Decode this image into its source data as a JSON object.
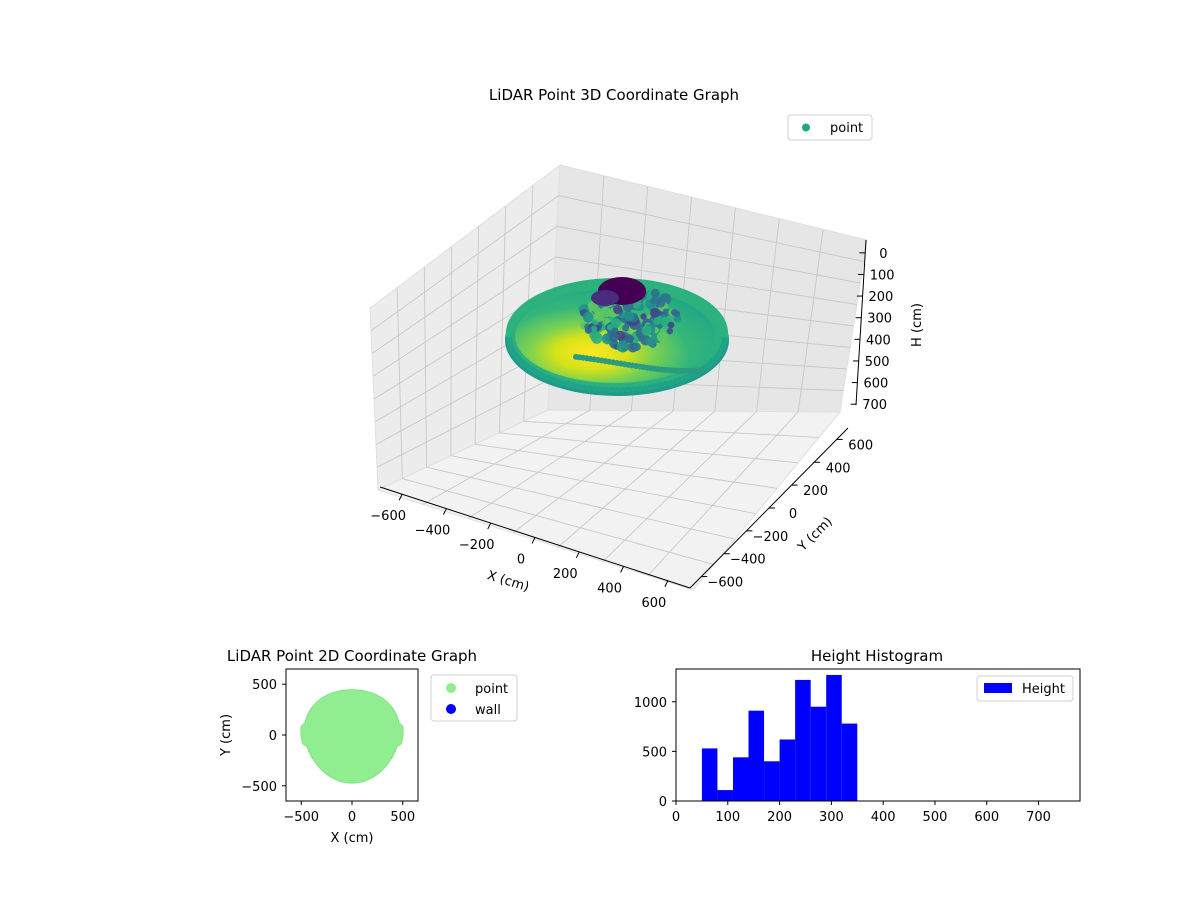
{
  "chart_data": [
    {
      "type": "scatter",
      "projection": "3d",
      "title": "LiDAR Point 3D Coordinate Graph",
      "xlabel": "X (cm)",
      "ylabel": "Y (cm)",
      "zlabel": "H (cm)",
      "xticks": [
        "−600",
        "−400",
        "−200",
        "0",
        "200",
        "400",
        "600"
      ],
      "yticks": [
        "600",
        "400",
        "200",
        "0",
        "−200",
        "−400",
        "−600"
      ],
      "zticks": [
        "0",
        "100",
        "200",
        "300",
        "400",
        "500",
        "600",
        "700"
      ],
      "xlim": [
        -650,
        650
      ],
      "ylim": [
        -650,
        650
      ],
      "zlim": [
        750,
        0
      ],
      "z_inverted": true,
      "grid": true,
      "colormap": "viridis",
      "legend": {
        "placement": "top-right",
        "entries": [
          {
            "label": "point",
            "color": "#21a685"
          }
        ]
      },
      "series": [
        {
          "name": "point",
          "description_values": {
            "outer_ring_radius_cm": 450,
            "floor_height_cm": 350,
            "top_cluster_height_cm": 60
          }
        }
      ]
    },
    {
      "type": "scatter",
      "title": "LiDAR Point 2D Coordinate Graph",
      "xlabel": "X (cm)",
      "ylabel": "Y (cm)",
      "xticks": [
        "−500",
        "0",
        "500"
      ],
      "yticks": [
        "500",
        "0",
        "−500"
      ],
      "xlim": [
        -650,
        650
      ],
      "ylim": [
        -650,
        650
      ],
      "legend": {
        "placement": "outside-right",
        "entries": [
          {
            "label": "point",
            "color": "#90ee90"
          },
          {
            "label": "wall",
            "color": "#0000ff"
          }
        ]
      },
      "series": [
        {
          "name": "point",
          "color": "#90ee90",
          "approx_shape": "disc",
          "radius_cm": 460
        },
        {
          "name": "wall",
          "color": "#0000ff",
          "values": []
        }
      ]
    },
    {
      "type": "bar",
      "subtype": "histogram",
      "title": "Height Histogram",
      "xticks": [
        "0",
        "100",
        "200",
        "300",
        "400",
        "500",
        "600",
        "700"
      ],
      "yticks": [
        "0",
        "500",
        "1000"
      ],
      "xlim": [
        0,
        780
      ],
      "ylim": [
        0,
        1330
      ],
      "legend": {
        "placement": "top-right",
        "entries": [
          {
            "label": "Height",
            "color": "#0000ff"
          }
        ]
      },
      "series": [
        {
          "name": "Height",
          "color": "#0000ff",
          "bin_edges": [
            50,
            80,
            110,
            140,
            170,
            200,
            230,
            260,
            290,
            320,
            350
          ],
          "values": [
            530,
            110,
            440,
            910,
            400,
            620,
            1220,
            950,
            1270,
            780
          ]
        }
      ]
    }
  ]
}
